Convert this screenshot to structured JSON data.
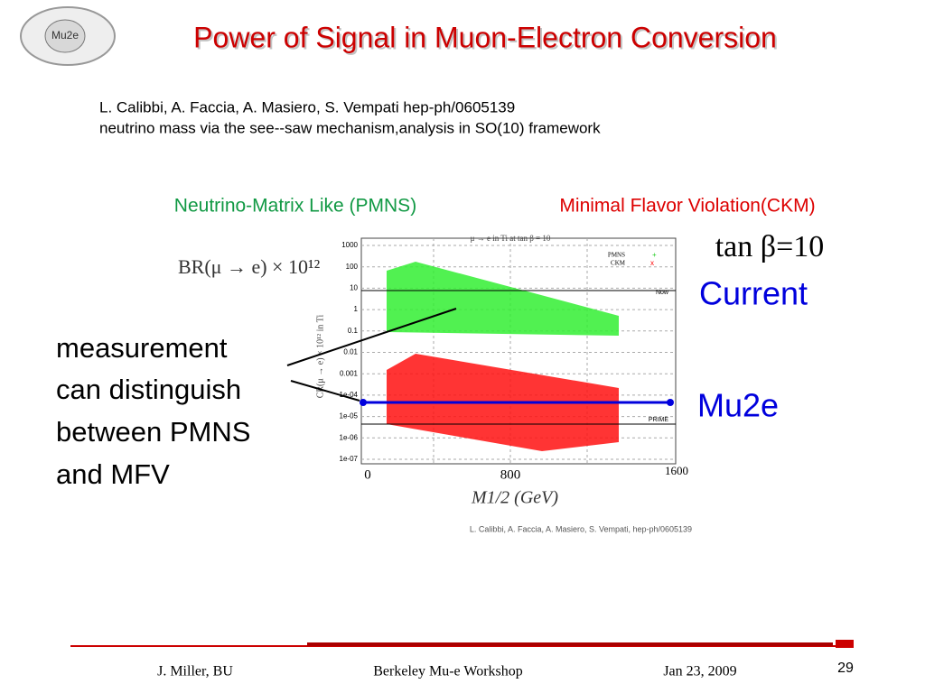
{
  "header": {
    "logo": "Mu2e",
    "title": "Power of Signal in Muon-Electron Conversion"
  },
  "reference": {
    "authors": "L. Calibbi, A. Faccia, A. Masiero, S. Vempati hep-ph/0605139",
    "description": "neutrino mass via the see--saw mechanism,analysis in SO(10) framework"
  },
  "labels": {
    "pmns": "Neutrino-Matrix Like (PMNS)",
    "ckm": "Minimal Flavor Violation(CKM)",
    "tan_beta": "tan β=10",
    "current": "Current",
    "mu2e": "Mu2e",
    "br_formula": "BR(μ → e) × 10¹²"
  },
  "annotation": [
    "measurement",
    "can distinguish",
    "between PMNS",
    "and MFV"
  ],
  "figure": {
    "title": "μ → e in Ti at tan β = 10",
    "y_label": "CR(μ → e) × 10¹² in Ti",
    "y_tick_labels": [
      "1000",
      "100",
      "10",
      "1",
      "0.1",
      "0.01",
      "0.001",
      "1e-04",
      "1e-05",
      "1e-06",
      "1e-07"
    ],
    "legend": [
      "PMNS",
      "CKM"
    ],
    "lines": [
      "Now",
      "PRIME"
    ],
    "x_tick_labels": [
      "0",
      "800",
      "1600"
    ],
    "x_label": "M1/2 (GeV)",
    "citation": "L. Calibbi, A. Faccia, A. Masiero, S. Vempati, hep-ph/0605139"
  },
  "footer": {
    "author": "J. Miller, BU",
    "event": "Berkeley Mu-e Workshop",
    "date": "Jan 23, 2009",
    "page": "29"
  }
}
